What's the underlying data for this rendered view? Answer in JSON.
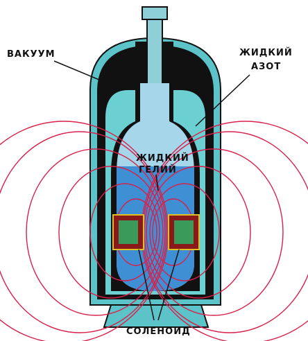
{
  "labels": {
    "vacuum": {
      "lines": [
        "ВАКУУМ"
      ]
    },
    "liquid_nitrogen": {
      "lines": [
        "ЖИДКИЙ",
        "АЗОТ"
      ]
    },
    "liquid_helium": {
      "lines": [
        "ЖИДКИЙ",
        "ГЕЛИЙ"
      ]
    },
    "solenoid": {
      "lines": [
        "СОЛЕНОИД"
      ]
    }
  }
}
